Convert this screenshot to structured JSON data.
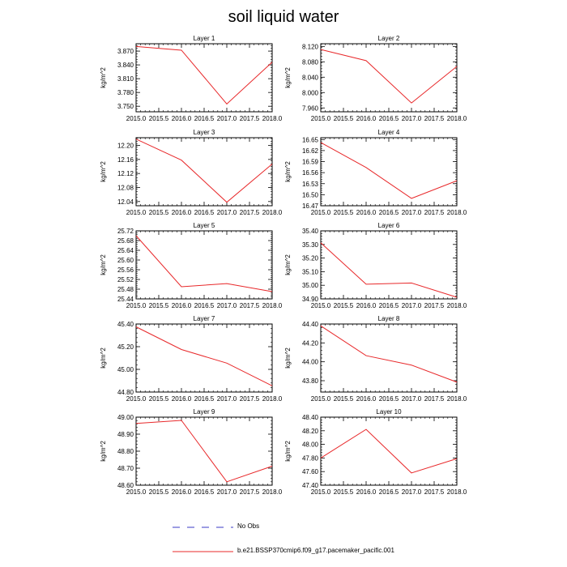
{
  "title": "soil liquid water",
  "legend": {
    "obs_label": "No Obs",
    "model_label": "b.e21.BSSP370cmip6.f09_g17.pacemaker_pacific.001",
    "obs_color": "#3b3bc4",
    "model_color": "#e8282a"
  },
  "chart_data": [
    {
      "type": "line",
      "title": "Layer 1",
      "ylabel": "kg/m^2",
      "x": [
        2015.0,
        2016.0,
        2017.0,
        2018.0
      ],
      "values": [
        3.88,
        3.872,
        3.755,
        3.846
      ],
      "xlim": [
        2015.0,
        2018.0
      ],
      "ylim": [
        3.738,
        3.886
      ],
      "xticks": [
        "2015.0",
        "2015.5",
        "2016.0",
        "2016.5",
        "2017.0",
        "2017.5",
        "2018.0"
      ],
      "yticks": [
        "3.750",
        "3.780",
        "3.810",
        "3.840",
        "3.870"
      ],
      "yticks_num": [
        3.75,
        3.78,
        3.81,
        3.84,
        3.87
      ],
      "ystep": 0.03
    },
    {
      "type": "line",
      "title": "Layer 2",
      "ylabel": "kg/m^2",
      "x": [
        2015.0,
        2016.0,
        2017.0,
        2018.0
      ],
      "values": [
        8.112,
        8.083,
        7.973,
        8.068
      ],
      "xlim": [
        2015.0,
        2018.0
      ],
      "ylim": [
        7.95,
        8.127
      ],
      "xticks": [
        "2015.0",
        "2015.5",
        "2016.0",
        "2016.5",
        "2017.0",
        "2017.5",
        "2018.0"
      ],
      "yticks": [
        "7.960",
        "8.000",
        "8.040",
        "8.080",
        "8.120"
      ],
      "yticks_num": [
        7.96,
        8.0,
        8.04,
        8.08,
        8.12
      ],
      "ystep": 0.04
    },
    {
      "type": "line",
      "title": "Layer 3",
      "ylabel": "kg/m^2",
      "x": [
        2015.0,
        2016.0,
        2017.0,
        2018.0
      ],
      "values": [
        12.218,
        12.158,
        12.038,
        12.147
      ],
      "xlim": [
        2015.0,
        2018.0
      ],
      "ylim": [
        12.028,
        12.222
      ],
      "xticks": [
        "2015.0",
        "2015.5",
        "2016.0",
        "2016.5",
        "2017.0",
        "2017.5",
        "2018.0"
      ],
      "yticks": [
        "12.04",
        "12.08",
        "12.12",
        "12.16",
        "12.20"
      ],
      "yticks_num": [
        12.04,
        12.08,
        12.12,
        12.16,
        12.2
      ],
      "ystep": 0.04
    },
    {
      "type": "line",
      "title": "Layer 4",
      "ylabel": "kg/m^2",
      "x": [
        2015.0,
        2016.0,
        2017.0,
        2018.0
      ],
      "values": [
        16.642,
        16.574,
        16.49,
        16.538
      ],
      "xlim": [
        2015.0,
        2018.0
      ],
      "ylim": [
        16.47,
        16.655
      ],
      "xticks": [
        "2015.0",
        "2015.5",
        "2016.0",
        "2016.5",
        "2017.0",
        "2017.5",
        "2018.0"
      ],
      "yticks": [
        "16.47",
        "16.50",
        "16.53",
        "16.56",
        "16.59",
        "16.62",
        "16.65"
      ],
      "yticks_num": [
        16.47,
        16.5,
        16.53,
        16.56,
        16.59,
        16.62,
        16.65
      ],
      "ystep": 0.03
    },
    {
      "type": "line",
      "title": "Layer 5",
      "ylabel": "kg/m^2",
      "x": [
        2015.0,
        2016.0,
        2017.0,
        2018.0
      ],
      "values": [
        25.7,
        25.49,
        25.503,
        25.47
      ],
      "xlim": [
        2015.0,
        2018.0
      ],
      "ylim": [
        25.44,
        25.72
      ],
      "xticks": [
        "2015.0",
        "2015.5",
        "2016.0",
        "2016.5",
        "2017.0",
        "2017.5",
        "2018.0"
      ],
      "yticks": [
        "25.44",
        "25.48",
        "25.52",
        "25.56",
        "25.60",
        "25.64",
        "25.68",
        "25.72"
      ],
      "yticks_num": [
        25.44,
        25.48,
        25.52,
        25.56,
        25.6,
        25.64,
        25.68,
        25.72
      ],
      "ystep": 0.04
    },
    {
      "type": "line",
      "title": "Layer 6",
      "ylabel": "kg/m^2",
      "x": [
        2015.0,
        2016.0,
        2017.0,
        2018.0
      ],
      "values": [
        35.312,
        35.008,
        35.017,
        34.912
      ],
      "xlim": [
        2015.0,
        2018.0
      ],
      "ylim": [
        34.9,
        35.4
      ],
      "xticks": [
        "2015.0",
        "2015.5",
        "2016.0",
        "2016.5",
        "2017.0",
        "2017.5",
        "2018.0"
      ],
      "yticks": [
        "34.90",
        "35.00",
        "35.10",
        "35.20",
        "35.30",
        "35.40"
      ],
      "yticks_num": [
        34.9,
        35.0,
        35.1,
        35.2,
        35.3,
        35.4
      ],
      "ystep": 0.1
    },
    {
      "type": "line",
      "title": "Layer 7",
      "ylabel": "kg/m^2",
      "x": [
        2015.0,
        2016.0,
        2017.0,
        2018.0
      ],
      "values": [
        45.375,
        45.175,
        45.055,
        44.855
      ],
      "xlim": [
        2015.0,
        2018.0
      ],
      "ylim": [
        44.8,
        45.4
      ],
      "xticks": [
        "2015.0",
        "2015.5",
        "2016.0",
        "2016.5",
        "2017.0",
        "2017.5",
        "2018.0"
      ],
      "yticks": [
        "44.80",
        "45.00",
        "45.20",
        "45.40"
      ],
      "yticks_num": [
        44.8,
        45.0,
        45.2,
        45.4
      ],
      "ystep": 0.2
    },
    {
      "type": "line",
      "title": "Layer 8",
      "ylabel": "kg/m^2",
      "x": [
        2015.0,
        2016.0,
        2017.0,
        2018.0
      ],
      "values": [
        44.38,
        44.065,
        43.965,
        43.785
      ],
      "xlim": [
        2015.0,
        2018.0
      ],
      "ylim": [
        43.68,
        44.4
      ],
      "xticks": [
        "2015.0",
        "2015.5",
        "2016.0",
        "2016.5",
        "2017.0",
        "2017.5",
        "2018.0"
      ],
      "yticks": [
        "43.80",
        "44.00",
        "44.20",
        "44.40"
      ],
      "yticks_num": [
        43.8,
        44.0,
        44.2,
        44.4
      ],
      "ystep": 0.2
    },
    {
      "type": "line",
      "title": "Layer 9",
      "ylabel": "kg/m^2",
      "x": [
        2015.0,
        2016.0,
        2017.0,
        2018.0
      ],
      "values": [
        48.963,
        48.981,
        48.62,
        48.712
      ],
      "xlim": [
        2015.0,
        2018.0
      ],
      "ylim": [
        48.6,
        49.0
      ],
      "xticks": [
        "2015.0",
        "2015.5",
        "2016.0",
        "2016.5",
        "2017.0",
        "2017.5",
        "2018.0"
      ],
      "yticks": [
        "48.60",
        "48.70",
        "48.80",
        "48.90",
        "49.00"
      ],
      "yticks_num": [
        48.6,
        48.7,
        48.8,
        48.9,
        49.0
      ],
      "ystep": 0.1
    },
    {
      "type": "line",
      "title": "Layer 10",
      "ylabel": "kg/m^2",
      "x": [
        2015.0,
        2016.0,
        2017.0,
        2018.0
      ],
      "values": [
        47.8,
        48.22,
        47.58,
        47.79
      ],
      "xlim": [
        2015.0,
        2018.0
      ],
      "ylim": [
        47.4,
        48.4
      ],
      "xticks": [
        "2015.0",
        "2015.5",
        "2016.0",
        "2016.5",
        "2017.0",
        "2017.5",
        "2018.0"
      ],
      "yticks": [
        "47.40",
        "47.60",
        "47.80",
        "48.00",
        "48.20",
        "48.40"
      ],
      "yticks_num": [
        47.4,
        47.6,
        47.8,
        48.0,
        48.2,
        48.4
      ],
      "ystep": 0.2
    }
  ]
}
